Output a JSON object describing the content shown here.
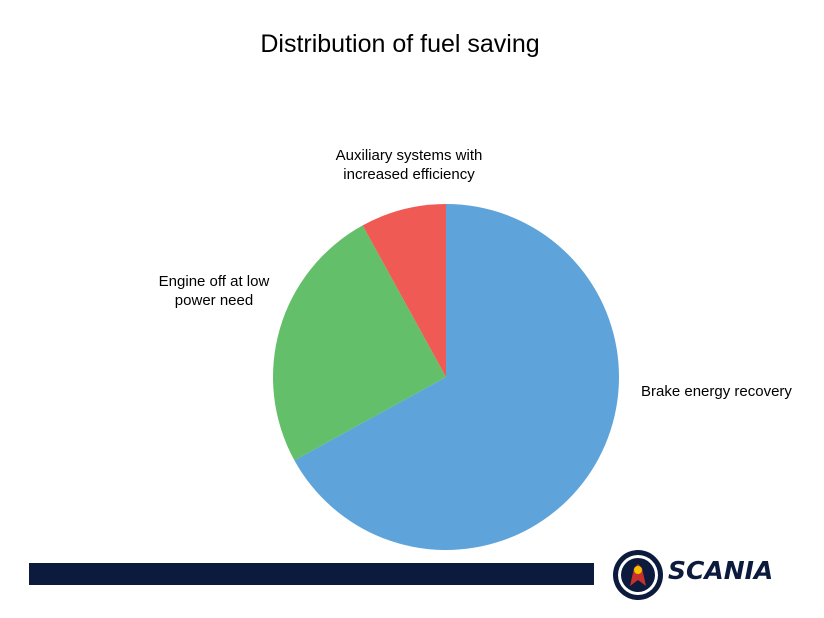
{
  "slide": {
    "title": "Distribution of fuel saving"
  },
  "chart_data": {
    "type": "pie",
    "title": "Distribution of fuel saving",
    "start_angle_deg": 0,
    "direction": "clockwise",
    "slices": [
      {
        "label": "Brake energy recovery",
        "value": 67,
        "color": "#5ea4da"
      },
      {
        "label": "Engine off at low power need",
        "value": 25,
        "color": "#63bf69"
      },
      {
        "label": "Auxiliary systems with increased efficiency",
        "value": 8,
        "color": "#f05a55"
      }
    ],
    "labels_display": {
      "brake": "Brake energy recovery",
      "engine": [
        "Engine off at low",
        "power need"
      ],
      "aux": [
        "Auxiliary systems with",
        "increased efficiency"
      ]
    }
  },
  "branding": {
    "logo_text": "SCANIA",
    "bar_color": "#0b1a3d",
    "logo_color": "#0b1a3d"
  }
}
